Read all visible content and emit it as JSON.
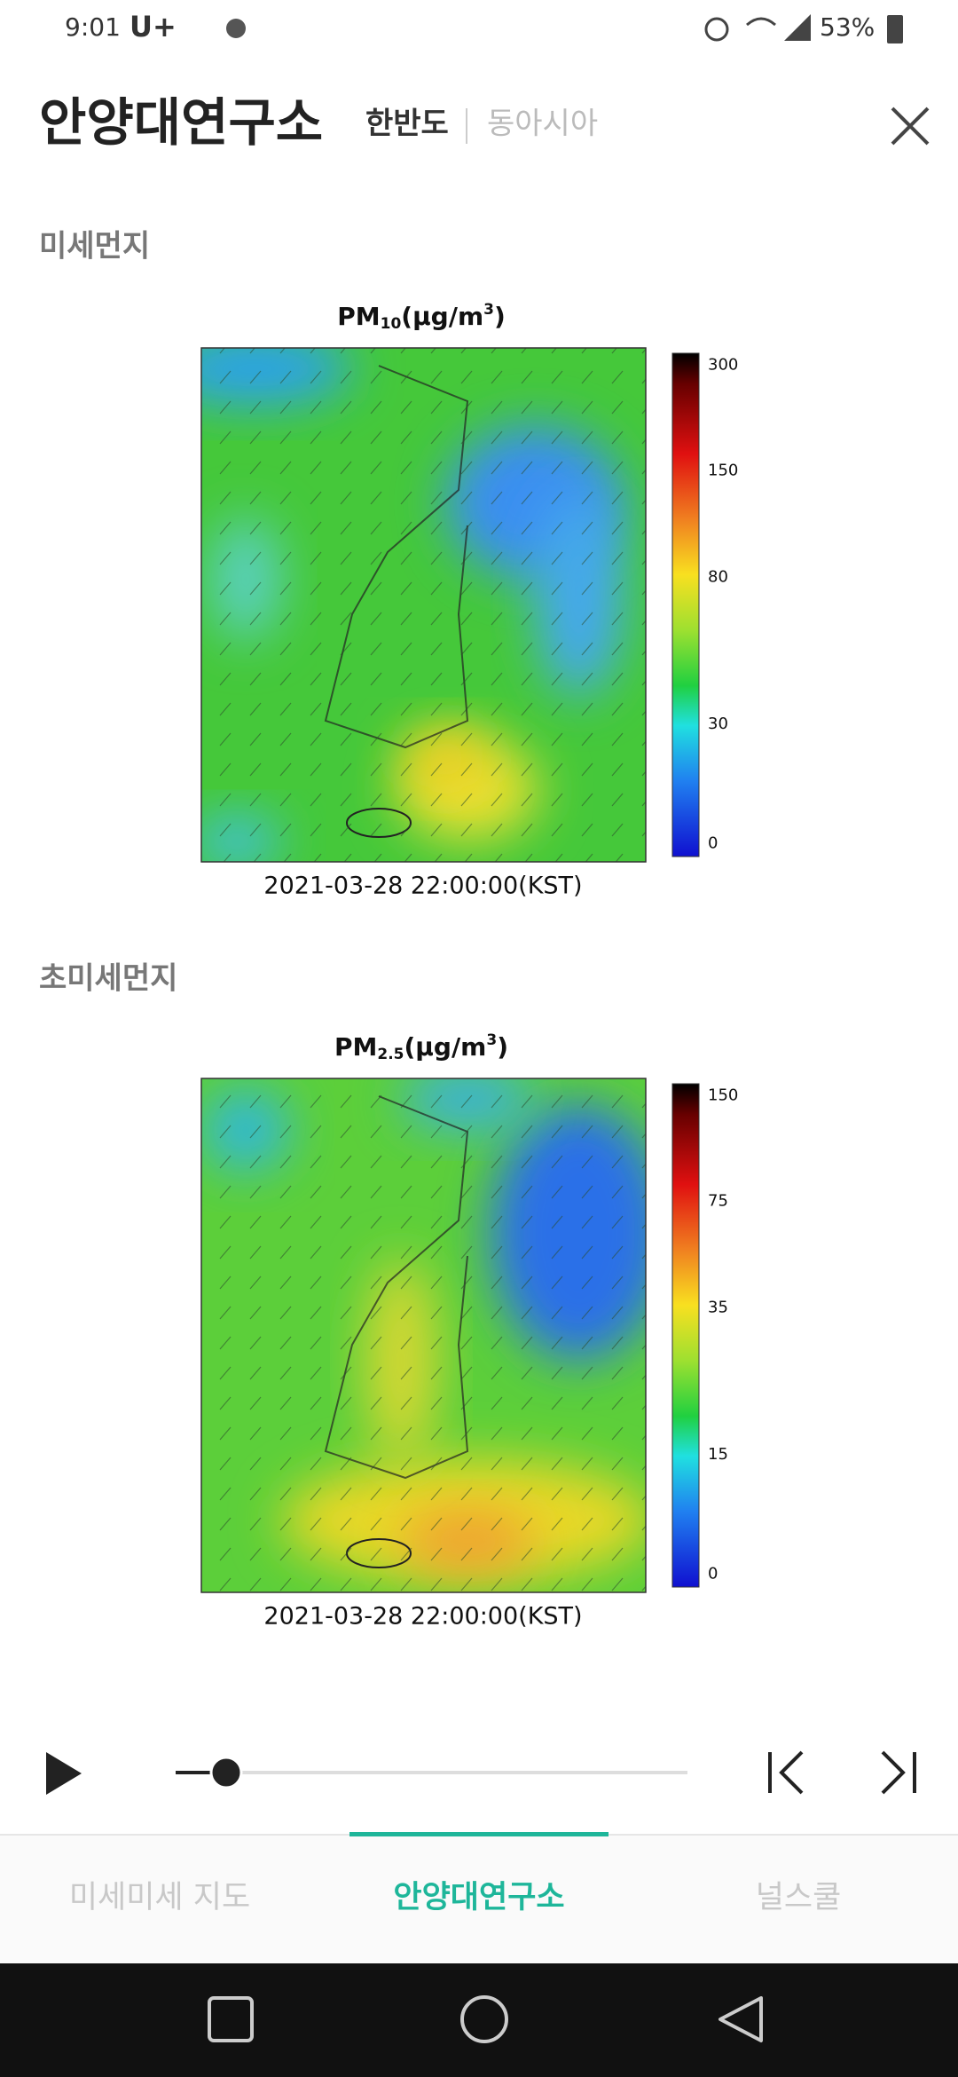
{
  "status_bar": {
    "time": "9:01",
    "carrier": "U+",
    "battery": "53%"
  },
  "header": {
    "title": "안양대연구소",
    "tabs": [
      "한반도",
      "동아시아"
    ]
  },
  "sections": [
    {
      "heading": "미세먼지",
      "map": {
        "title": "PM",
        "subscript": "10",
        "unit": "(μg/m",
        "superscript": "3",
        "unit_end": ")",
        "colorbar_labels": [
          "300",
          "150",
          "80",
          "30",
          "0"
        ],
        "timestamp": "2021-03-28 22:00:00(KST)"
      }
    },
    {
      "heading": "초미세먼지",
      "map": {
        "title": "PM",
        "subscript": "2.5",
        "unit": "(μg/m",
        "superscript": "3",
        "unit_end": ")",
        "colorbar_labels": [
          "150",
          "75",
          "35",
          "15",
          "0"
        ],
        "timestamp": "2021-03-28 22:00:00(KST)"
      }
    }
  ],
  "bottom_nav": {
    "items": [
      "미세미세 지도",
      "안양대연구소",
      "널스쿨"
    ]
  }
}
